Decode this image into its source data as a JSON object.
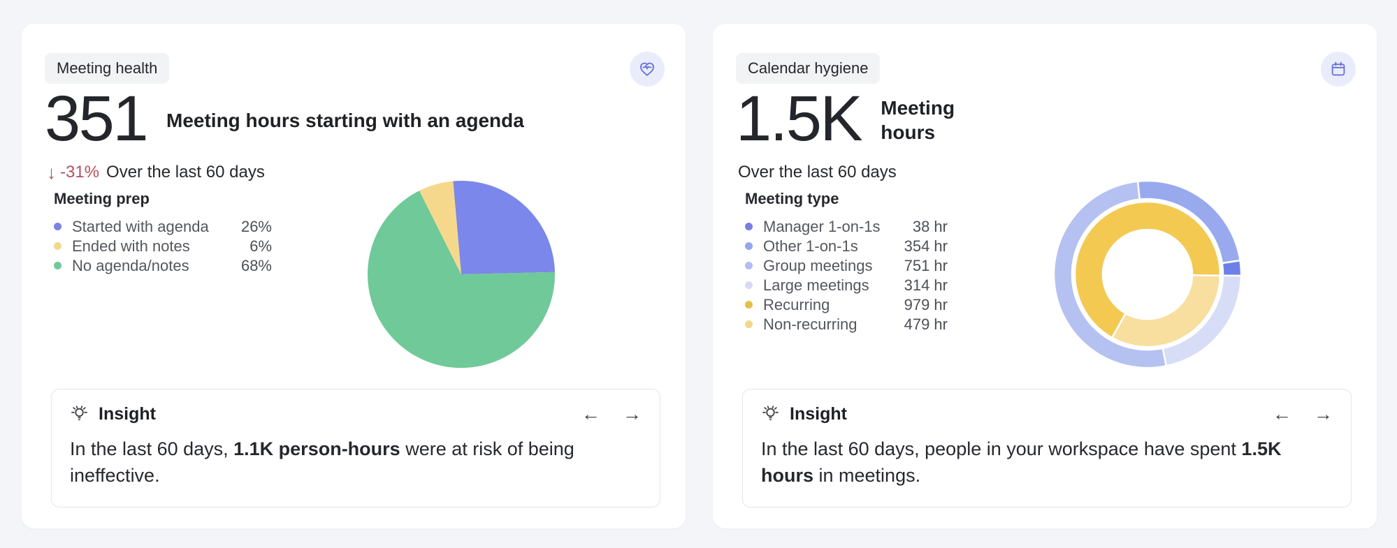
{
  "ui": {
    "down_arrow": "↓",
    "prev_arrow": "←",
    "next_arrow": "→"
  },
  "meeting_health": {
    "badge": "Meeting health",
    "header_icon": "heart-pulse-icon",
    "metric_value": "351",
    "metric_label": "Meeting hours starting with an agenda",
    "delta": {
      "value": "-31%",
      "direction": "down",
      "color": "#b5505a"
    },
    "period": "Over the last 60 days",
    "legend": {
      "title": "Meeting prep",
      "items": [
        {
          "label": "Started with agenda",
          "value": "26%",
          "color": "#7c82e6"
        },
        {
          "label": "Ended with notes",
          "value": "6%",
          "color": "#f4d88b"
        },
        {
          "label": "No agenda/notes",
          "value": "68%",
          "color": "#6fc998"
        }
      ]
    },
    "insight": {
      "title": "Insight",
      "body_prefix": "In the last 60 days, ",
      "body_bold": "1.1K person-hours",
      "body_suffix": " were at risk of being ineffective."
    }
  },
  "calendar_hygiene": {
    "badge": "Calendar hygiene",
    "header_icon": "calendar-icon",
    "metric_value": "1.5K",
    "metric_label": "Meeting hours",
    "period": "Over the last 60 days",
    "legend": {
      "title": "Meeting type",
      "items": [
        {
          "label": "Manager 1-on-1s",
          "value": "38 hr",
          "color": "#7b7de3"
        },
        {
          "label": "Other 1-on-1s",
          "value": "354 hr",
          "color": "#93a7ea"
        },
        {
          "label": "Group meetings",
          "value": "751 hr",
          "color": "#b4bdf0"
        },
        {
          "label": "Large meetings",
          "value": "314 hr",
          "color": "#d6d9f6"
        },
        {
          "label": "Recurring",
          "value": "979 hr",
          "color": "#e5bf47"
        },
        {
          "label": "Non-recurring",
          "value": "479 hr",
          "color": "#f1d88b"
        }
      ]
    },
    "insight": {
      "title": "Insight",
      "body_prefix": "In the last 60 days, people in your workspace have spent ",
      "body_bold": "1.5K hours",
      "body_suffix": " in meetings."
    }
  },
  "chart_data": [
    {
      "type": "pie",
      "title": "Meeting prep",
      "unit": "%",
      "start_angle": -5,
      "legend_position": "left",
      "slices": [
        {
          "label": "Started with agenda",
          "value": 26,
          "color": "#7b87ea"
        },
        {
          "label": "No agenda/notes",
          "value": 68,
          "color": "#70c998"
        },
        {
          "label": "Ended with notes",
          "value": 6,
          "color": "#f5d88c"
        }
      ]
    },
    {
      "type": "donut",
      "title": "Meeting type",
      "unit": "hr",
      "total_hours": 1457,
      "legend_position": "left",
      "rings": [
        {
          "name": "meeting-size",
          "radius": [
            0.806,
            1.0
          ],
          "start_angle": -6,
          "slices": [
            {
              "label": "Other 1-on-1s",
              "value": 354,
              "color": "#98a9ee"
            },
            {
              "label": "Manager 1-on-1s",
              "value": 38,
              "color": "#6e80e8"
            },
            {
              "label": "Large meetings",
              "value": 314,
              "color": "#d8ddf7"
            },
            {
              "label": "Group meetings",
              "value": 751,
              "color": "#b4c1f1"
            }
          ]
        },
        {
          "name": "recurrence",
          "radius": [
            0.478,
            0.776
          ],
          "start_angle": 91,
          "slices": [
            {
              "label": "Non-recurring",
              "value": 479,
              "color": "#f8dfa0"
            },
            {
              "label": "Recurring",
              "value": 979,
              "color": "#f3c952"
            }
          ]
        }
      ]
    }
  ]
}
